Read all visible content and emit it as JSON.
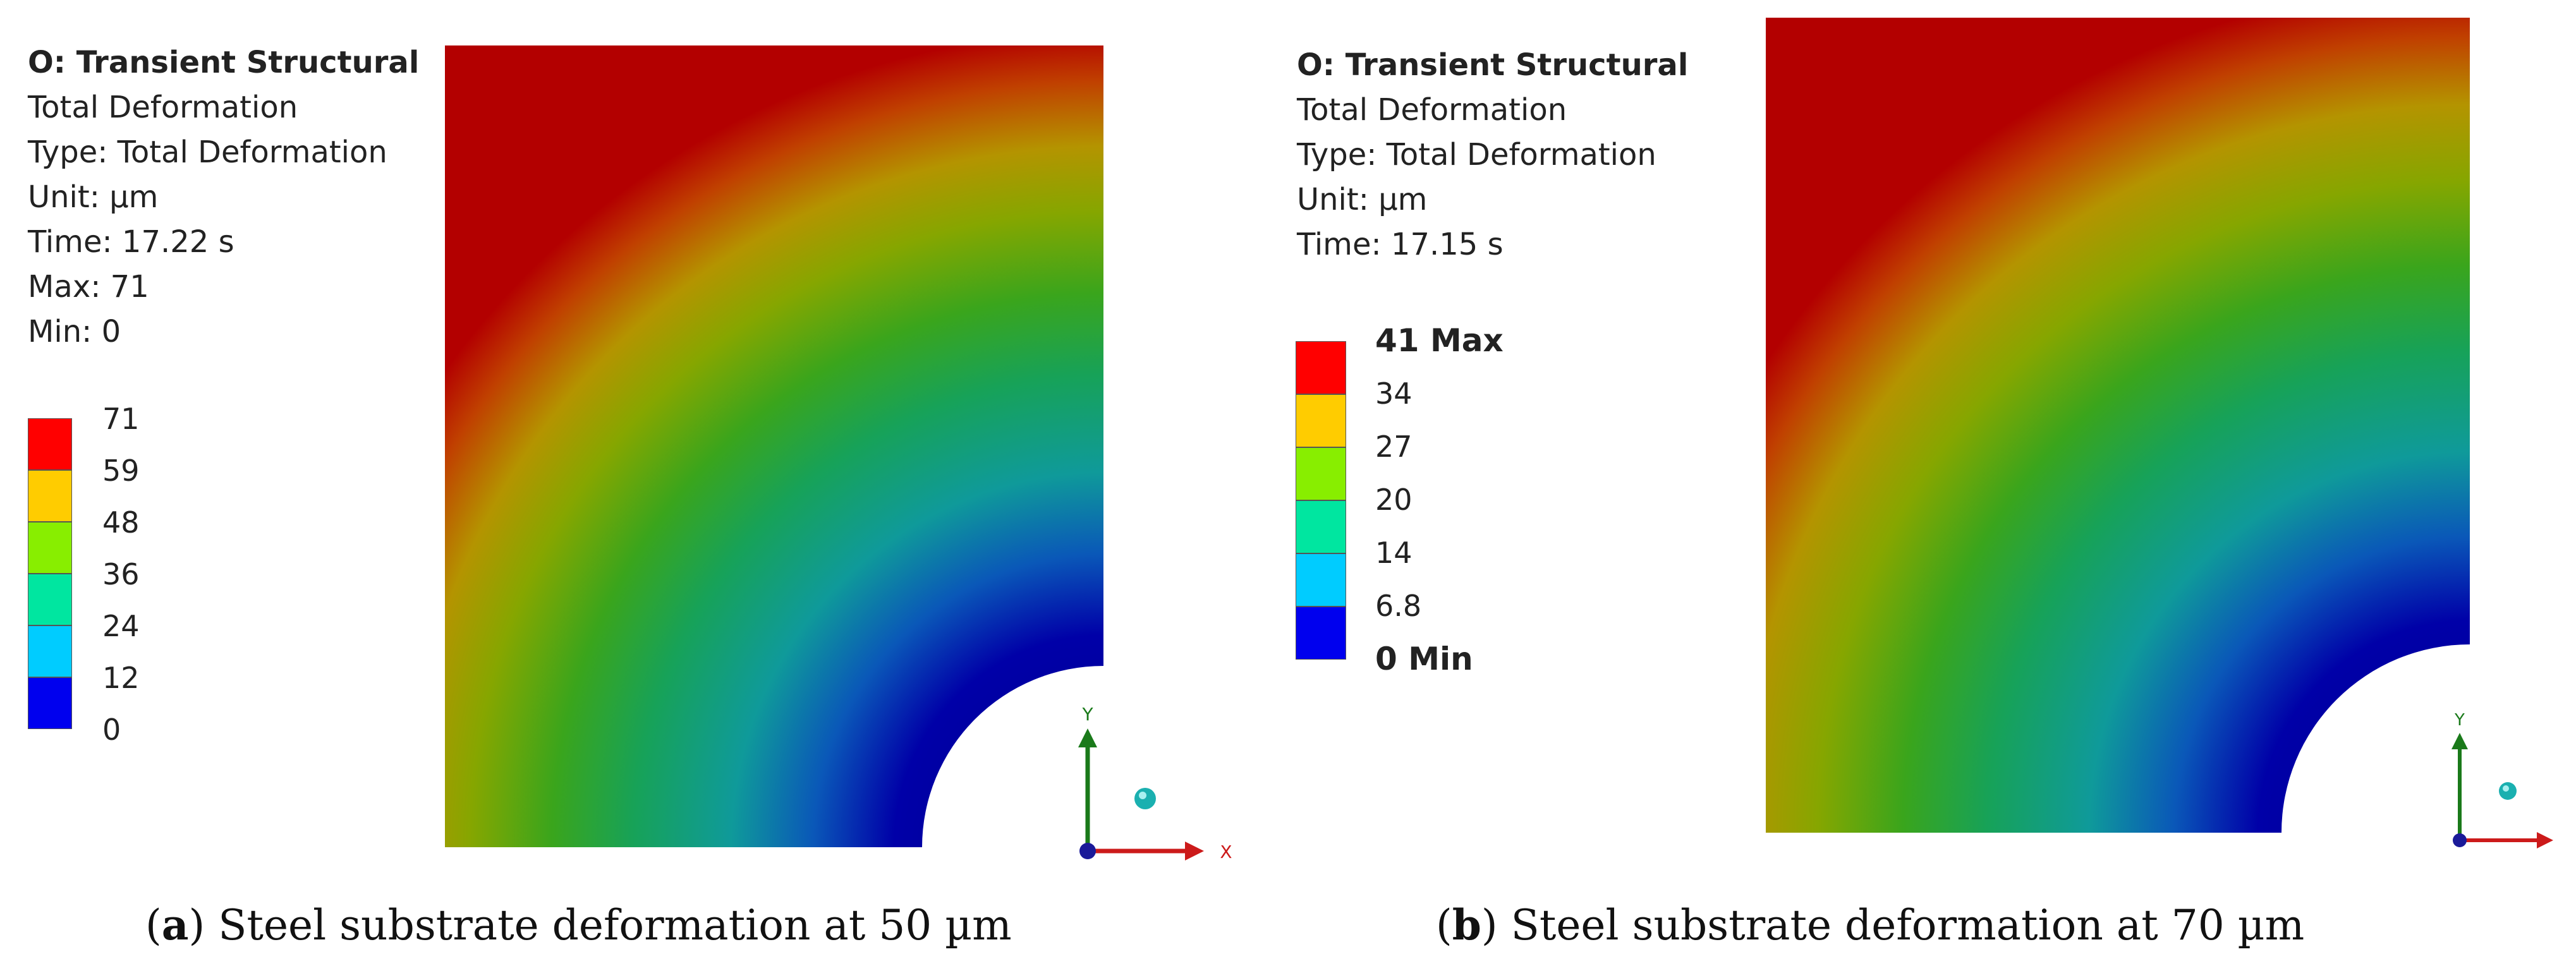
{
  "panels": [
    {
      "id": "a",
      "info": {
        "title": "O: Transient Structural",
        "result": "Total Deformation",
        "type": "Type: Total Deformation",
        "unit": "Unit: µm",
        "time": "Time: 17.22 s",
        "max": "Max: 71",
        "min": "Min: 0"
      },
      "legend": [
        "71",
        "59",
        "48",
        "36",
        "24",
        "12",
        "0"
      ],
      "legend_colors": [
        "#ff0000",
        "#ffcc00",
        "#88ee00",
        "#00e6a0",
        "#00ccff",
        "#0000ee"
      ],
      "axes": {
        "y": "Y",
        "x": "X"
      },
      "caption": {
        "letter": "a",
        "open": "(",
        "close": ")",
        "text": " Steel substrate deformation at 50 µm"
      }
    },
    {
      "id": "b",
      "info": {
        "title": "O: Transient Structural",
        "result": "Total Deformation",
        "type": "Type: Total Deformation",
        "unit": "Unit: µm",
        "time": "Time: 17.15 s"
      },
      "legend": [
        "41 Max",
        "34",
        "27",
        "20",
        "14",
        "6.8",
        "0 Min"
      ],
      "legend_colors": [
        "#ff0000",
        "#ffcc00",
        "#88ee00",
        "#00e6a0",
        "#00ccff",
        "#0000ee"
      ],
      "axes": {
        "y": "Y"
      },
      "caption": {
        "letter": "b",
        "open": "(",
        "close": ")",
        "text": " Steel substrate deformation at 70 µm"
      }
    }
  ],
  "colors": {
    "max": "#b40000",
    "upper": "#d6a000",
    "mid": "#3aa800",
    "lower": "#00a0a0",
    "min": "#0000a0"
  }
}
